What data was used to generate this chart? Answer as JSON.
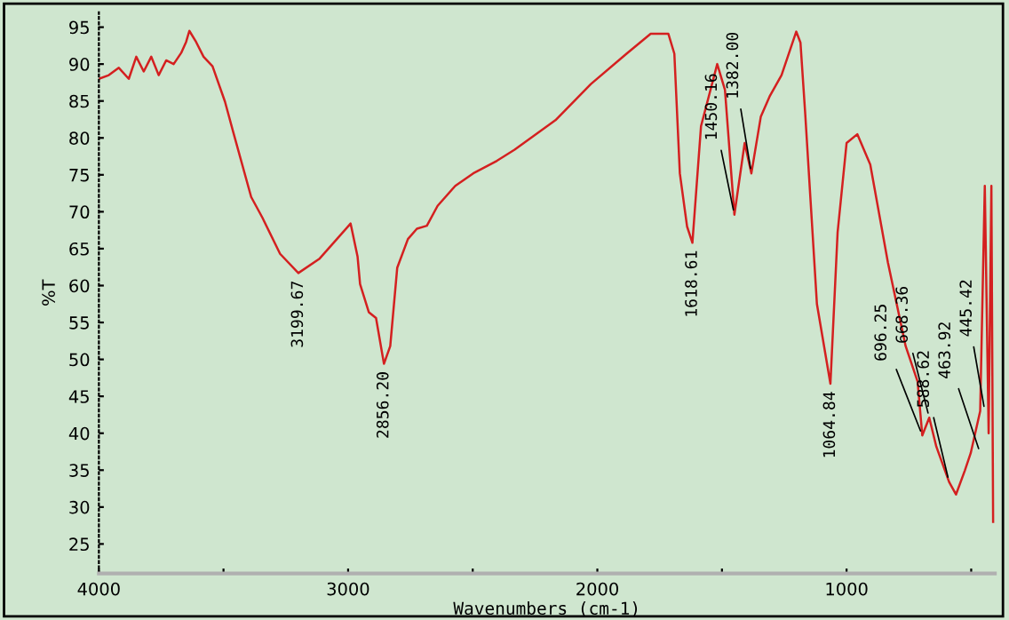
{
  "chart_data": {
    "type": "line",
    "xlabel": "Wavenumbers (cm-1)",
    "ylabel": "%T",
    "xlim": [
      4000,
      405
    ],
    "ylim": [
      21,
      97
    ],
    "xticks": [
      4000,
      {
        "value": 3500,
        "label": null
      },
      3000,
      {
        "value": 2500,
        "label": null
      },
      2000,
      {
        "value": 1500,
        "label": null
      },
      1000,
      {
        "value": 500,
        "label": null
      }
    ],
    "yticks": [
      25,
      30,
      35,
      40,
      45,
      50,
      55,
      60,
      65,
      70,
      75,
      80,
      85,
      90,
      95
    ],
    "grid": false,
    "legend": false,
    "marker": "none",
    "line_style": "solid",
    "series": [
      {
        "color": "#d42020",
        "x": [
          4000,
          3960,
          3920,
          3880,
          3850,
          3820,
          3790,
          3760,
          3730,
          3700,
          3670,
          3650,
          3637,
          3610,
          3580,
          3544,
          3494,
          3461,
          3389,
          3344,
          3273,
          3199.67,
          3116,
          3045,
          2990,
          2962,
          2952,
          2917,
          2888,
          2856.2,
          2831,
          2803,
          2760,
          2724,
          2684,
          2641,
          2570,
          2498,
          2403,
          2332,
          2168,
          2026,
          1883,
          1786,
          1715,
          1691,
          1669,
          1640,
          1618.61,
          1584,
          1519,
          1488,
          1450.16,
          1409,
          1382,
          1344,
          1309,
          1261,
          1202,
          1185,
          1166,
          1119,
          1064.84,
          1036,
          1000,
          957,
          905,
          834,
          763,
          715,
          696.25,
          668.36,
          640,
          588.62,
          561,
          526,
          502,
          463.92,
          445.42,
          430,
          419,
          412
        ],
        "values": [
          88,
          88.5,
          89.5,
          88,
          91,
          89,
          91,
          88.5,
          90.5,
          90,
          91.5,
          93,
          94.5,
          93,
          91,
          89.7,
          84.9,
          80.8,
          72,
          69.2,
          64.3,
          61.7,
          63.6,
          66.3,
          68.4,
          63.9,
          60.2,
          56.4,
          55.6,
          49.4,
          51.8,
          62.4,
          66.3,
          67.7,
          68.1,
          70.8,
          73.5,
          75.2,
          76.9,
          78.4,
          82.4,
          87.3,
          91.4,
          94.1,
          94.1,
          91.4,
          75.2,
          68,
          65.8,
          81.6,
          90,
          86.5,
          69.6,
          79.3,
          75.2,
          82.9,
          85.6,
          88.5,
          94.4,
          92.9,
          83.3,
          57.5,
          46.7,
          67.2,
          79.3,
          80.5,
          76.4,
          63.1,
          51.8,
          47,
          39.7,
          42.1,
          38.2,
          33.4,
          31.7,
          34.9,
          37.3,
          43,
          73.5,
          40,
          73.5,
          28
        ]
      }
    ],
    "annotations": [
      {
        "text": "3199.67",
        "x": 3199.67,
        "y": 61.7
      },
      {
        "text": "2856.20",
        "x": 2856.2,
        "y": 49.4
      },
      {
        "text": "1618.61",
        "x": 1618.61,
        "y": 65.8
      },
      {
        "text": "1450.16",
        "x": 1450.16,
        "y": 69.6
      },
      {
        "text": "1382.00",
        "x": 1382,
        "y": 75.2
      },
      {
        "text": "1064.84",
        "x": 1064.84,
        "y": 46.7
      },
      {
        "text": "696.25",
        "x": 696.25,
        "y": 39.7
      },
      {
        "text": "668.36",
        "x": 668.36,
        "y": 42.1
      },
      {
        "text": "588.62",
        "x": 588.62,
        "y": 33.4
      },
      {
        "text": "463.92",
        "x": 463.92,
        "y": 37.3
      },
      {
        "text": "445.42",
        "x": 445.42,
        "y": 43
      }
    ]
  }
}
